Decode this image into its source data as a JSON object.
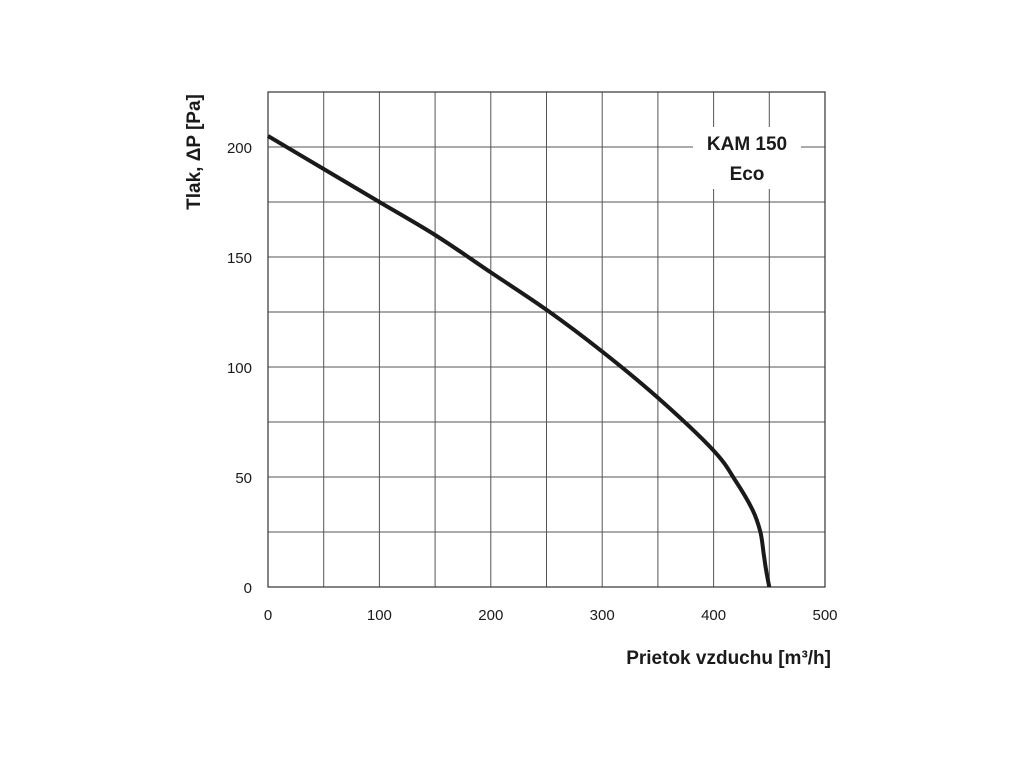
{
  "chart_data": {
    "type": "line",
    "title": "",
    "xlabel": "Prietok vzduchu  [m³/h]",
    "ylabel": "Tlak, ΔP [Pa]",
    "xlim": [
      0,
      500
    ],
    "ylim": [
      0,
      225
    ],
    "x_ticks": [
      0,
      100,
      200,
      300,
      400,
      500
    ],
    "y_ticks": [
      0,
      50,
      100,
      150,
      200
    ],
    "x_gridlines": [
      0,
      50,
      100,
      150,
      200,
      250,
      300,
      350,
      400,
      450,
      500
    ],
    "y_gridlines": [
      0,
      25,
      50,
      75,
      100,
      125,
      150,
      175,
      200,
      225
    ],
    "grid": true,
    "legend_position": "top-right",
    "series": [
      {
        "name": "KAM 150 Eco",
        "legend_lines": [
          "KAM 150",
          "Eco"
        ],
        "color": "#1a1a1a",
        "x": [
          0,
          50,
          100,
          150,
          200,
          250,
          300,
          350,
          400,
          420,
          435,
          442,
          445,
          447,
          450
        ],
        "y": [
          205,
          190,
          175,
          160,
          143,
          126,
          107,
          86,
          62,
          48,
          35,
          25,
          15,
          8,
          0
        ]
      }
    ]
  }
}
